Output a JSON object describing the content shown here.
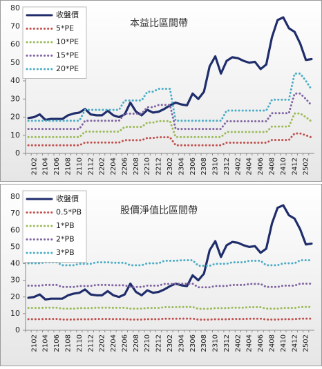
{
  "chart_data": [
    {
      "type": "line",
      "title": "本益比區間帶",
      "categories": [
        null,
        "2102",
        null,
        "2104",
        null,
        "2106",
        null,
        "2108",
        null,
        "2110",
        null,
        "2112",
        null,
        "2202",
        null,
        "2204",
        null,
        "2206",
        null,
        "2208",
        null,
        "2210",
        null,
        "2212",
        null,
        "2302",
        null,
        "2304",
        null,
        "2306",
        null,
        "2308",
        null,
        "2310",
        null,
        "2312",
        null,
        "2402",
        null,
        "2404",
        null,
        "2406",
        null,
        "2408",
        null,
        "2410",
        null,
        "2412",
        null,
        "2502",
        null
      ],
      "series": [
        {
          "name": "收盤價",
          "color": "#1f2d6b",
          "linestyle": "solid",
          "values": [
            19.5,
            20,
            21.5,
            18.5,
            19,
            19,
            19,
            21,
            22,
            22.5,
            24.5,
            21.5,
            21,
            21,
            23.5,
            21,
            20,
            21.5,
            28,
            23,
            21,
            24,
            22.5,
            23,
            24.5,
            26.5,
            28,
            27,
            26.5,
            33,
            30,
            34,
            48,
            53.5,
            44,
            51,
            53,
            52.5,
            51,
            50,
            50.5,
            46.5,
            49,
            64,
            73.5,
            75,
            69,
            67,
            60.5,
            51.5,
            52
          ]
        },
        {
          "name": "5*PE",
          "color": "#c0504d",
          "linestyle": "dotted",
          "values": [
            4.5,
            4.5,
            4.5,
            4.5,
            4.5,
            4.5,
            4.5,
            4.5,
            4.5,
            4.5,
            6,
            6,
            6,
            6,
            6,
            6,
            6,
            7.3,
            7.3,
            7.3,
            7.3,
            8.5,
            8.5,
            8.9,
            8.9,
            8.9,
            4.5,
            4.5,
            4.5,
            4.5,
            4.5,
            4.5,
            4.5,
            4.5,
            4.5,
            5.9,
            5.9,
            5.9,
            5.9,
            5.9,
            5.9,
            5.9,
            5.9,
            7.4,
            7.4,
            7.4,
            7.4,
            11,
            11,
            10,
            8.8
          ]
        },
        {
          "name": "10*PE",
          "color": "#9bbb59",
          "linestyle": "dotted",
          "values": [
            9,
            9,
            9,
            9,
            9,
            9,
            9,
            9,
            9,
            9,
            12,
            12,
            12,
            12,
            12,
            12,
            12,
            14.6,
            14.6,
            14.6,
            14.6,
            17,
            17,
            17.8,
            17.8,
            17.8,
            9,
            9,
            9,
            9,
            9,
            9,
            9,
            9,
            9,
            11.8,
            11.8,
            11.8,
            11.8,
            11.8,
            11.8,
            11.8,
            11.8,
            14.8,
            14.8,
            14.8,
            14.8,
            22,
            22,
            20,
            17.6
          ]
        },
        {
          "name": "15*PE",
          "color": "#8064a2",
          "linestyle": "dotted",
          "values": [
            13.5,
            13.5,
            13.5,
            13.5,
            13.5,
            13.5,
            13.5,
            13.5,
            13.5,
            13.5,
            18,
            18,
            18,
            18,
            18,
            18,
            18,
            21.9,
            21.9,
            21.9,
            21.9,
            25.5,
            25.5,
            26.7,
            26.7,
            26.7,
            13.5,
            13.5,
            13.5,
            13.5,
            13.5,
            13.5,
            13.5,
            13.5,
            13.5,
            17.7,
            17.7,
            17.7,
            17.7,
            17.7,
            17.7,
            17.7,
            17.7,
            22.2,
            22.2,
            22.2,
            22.2,
            33,
            33,
            30,
            26.4
          ]
        },
        {
          "name": "20*PE",
          "color": "#4bacc6",
          "linestyle": "dotted",
          "values": [
            18,
            18,
            18,
            18,
            18,
            18,
            18,
            18,
            18,
            18,
            24,
            24,
            24,
            24,
            24,
            24,
            24,
            29.2,
            29.2,
            29.2,
            29.2,
            34,
            34,
            35.6,
            35.6,
            35.6,
            18,
            18,
            18,
            18,
            18,
            18,
            18,
            18,
            18,
            23.6,
            23.6,
            23.6,
            23.6,
            23.6,
            23.6,
            23.6,
            23.6,
            29.6,
            29.6,
            29.6,
            29.6,
            44,
            44,
            40,
            35.2
          ]
        }
      ],
      "ylim": [
        0,
        80
      ],
      "yticks": [
        0,
        10,
        20,
        30,
        40,
        50,
        60,
        70,
        80
      ],
      "grid": false,
      "legend": "upper left"
    },
    {
      "type": "line",
      "title": "股價淨值比區間帶",
      "categories": [
        null,
        "2102",
        null,
        "2104",
        null,
        "2106",
        null,
        "2108",
        null,
        "2110",
        null,
        "2112",
        null,
        "2202",
        null,
        "2204",
        null,
        "2206",
        null,
        "2208",
        null,
        "2210",
        null,
        "2212",
        null,
        "2302",
        null,
        "2304",
        null,
        "2306",
        null,
        "2308",
        null,
        "2310",
        null,
        "2312",
        null,
        "2402",
        null,
        "2404",
        null,
        "2406",
        null,
        "2408",
        null,
        "2410",
        null,
        "2412",
        null,
        "2502",
        null
      ],
      "series": [
        {
          "name": "收盤價",
          "color": "#1f2d6b",
          "linestyle": "solid",
          "values": [
            19.5,
            20,
            21.5,
            18.5,
            19,
            19,
            19,
            21,
            22,
            22.5,
            24.5,
            21.5,
            21,
            21,
            23.5,
            21,
            20,
            21.5,
            28,
            23,
            21,
            24,
            22.5,
            23,
            24.5,
            26.5,
            28,
            27,
            26.5,
            33,
            30,
            34,
            48,
            53.5,
            44,
            51,
            53,
            52.5,
            51,
            50,
            50.5,
            46.5,
            49,
            64,
            73.5,
            75,
            69,
            67,
            60.5,
            51.5,
            52
          ]
        },
        {
          "name": "0.5*PB",
          "color": "#c0504d",
          "linestyle": "dotted",
          "values": [
            6.7,
            6.7,
            6.7,
            6.8,
            6.8,
            6.8,
            6.5,
            6.5,
            6.5,
            6.65,
            6.65,
            6.65,
            6.8,
            6.8,
            6.8,
            6.75,
            6.75,
            6.75,
            6.5,
            6.5,
            6.5,
            6.7,
            6.7,
            6.7,
            6.95,
            6.95,
            6.95,
            7,
            7,
            7,
            6.45,
            6.45,
            6.45,
            6.65,
            6.65,
            6.65,
            6.8,
            6.8,
            6.8,
            6.95,
            6.95,
            6.95,
            6.5,
            6.5,
            6.5,
            6.7,
            6.7,
            6.7,
            7,
            7,
            7
          ]
        },
        {
          "name": "1*PB",
          "color": "#9bbb59",
          "linestyle": "dotted",
          "values": [
            13.4,
            13.4,
            13.4,
            13.6,
            13.6,
            13.6,
            13,
            13,
            13,
            13.3,
            13.3,
            13.3,
            13.6,
            13.6,
            13.6,
            13.5,
            13.5,
            13.5,
            13,
            13,
            13,
            13.4,
            13.4,
            13.4,
            13.9,
            13.9,
            13.9,
            14,
            14,
            14,
            12.9,
            12.9,
            12.9,
            13.3,
            13.3,
            13.3,
            13.6,
            13.6,
            13.6,
            13.9,
            13.9,
            13.9,
            13,
            13,
            13,
            13.4,
            13.4,
            13.4,
            14,
            14,
            14
          ]
        },
        {
          "name": "2*PB",
          "color": "#8064a2",
          "linestyle": "dotted",
          "values": [
            26.8,
            26.8,
            26.8,
            27.2,
            27.2,
            27.2,
            26,
            26,
            26,
            26.6,
            26.6,
            26.6,
            27.2,
            27.2,
            27.2,
            27,
            27,
            27,
            26,
            26,
            26,
            26.8,
            26.8,
            26.8,
            27.8,
            27.8,
            27.8,
            28,
            28,
            28,
            25.8,
            25.8,
            25.8,
            26.6,
            26.6,
            26.6,
            27.2,
            27.2,
            27.2,
            27.8,
            27.8,
            27.8,
            26,
            26,
            26,
            26.8,
            26.8,
            26.8,
            28,
            28,
            28
          ]
        },
        {
          "name": "3*PB",
          "color": "#4bacc6",
          "linestyle": "dotted",
          "values": [
            40.2,
            40.2,
            40.2,
            40.8,
            40.8,
            40.8,
            39,
            39,
            39,
            39.9,
            39.9,
            39.9,
            40.8,
            40.8,
            40.8,
            40.5,
            40.5,
            40.5,
            39,
            39,
            39,
            40.2,
            40.2,
            40.2,
            41.7,
            41.7,
            41.7,
            42,
            42,
            42,
            38.7,
            38.7,
            38.7,
            39.9,
            39.9,
            39.9,
            40.8,
            40.8,
            40.8,
            41.7,
            41.7,
            41.7,
            39,
            39,
            39,
            40.2,
            40.2,
            40.2,
            42,
            42,
            42
          ]
        }
      ],
      "ylim": [
        0,
        80
      ],
      "yticks": [
        0,
        10,
        20,
        30,
        40,
        50,
        60,
        70,
        80
      ],
      "grid": false,
      "legend": "upper left"
    }
  ]
}
